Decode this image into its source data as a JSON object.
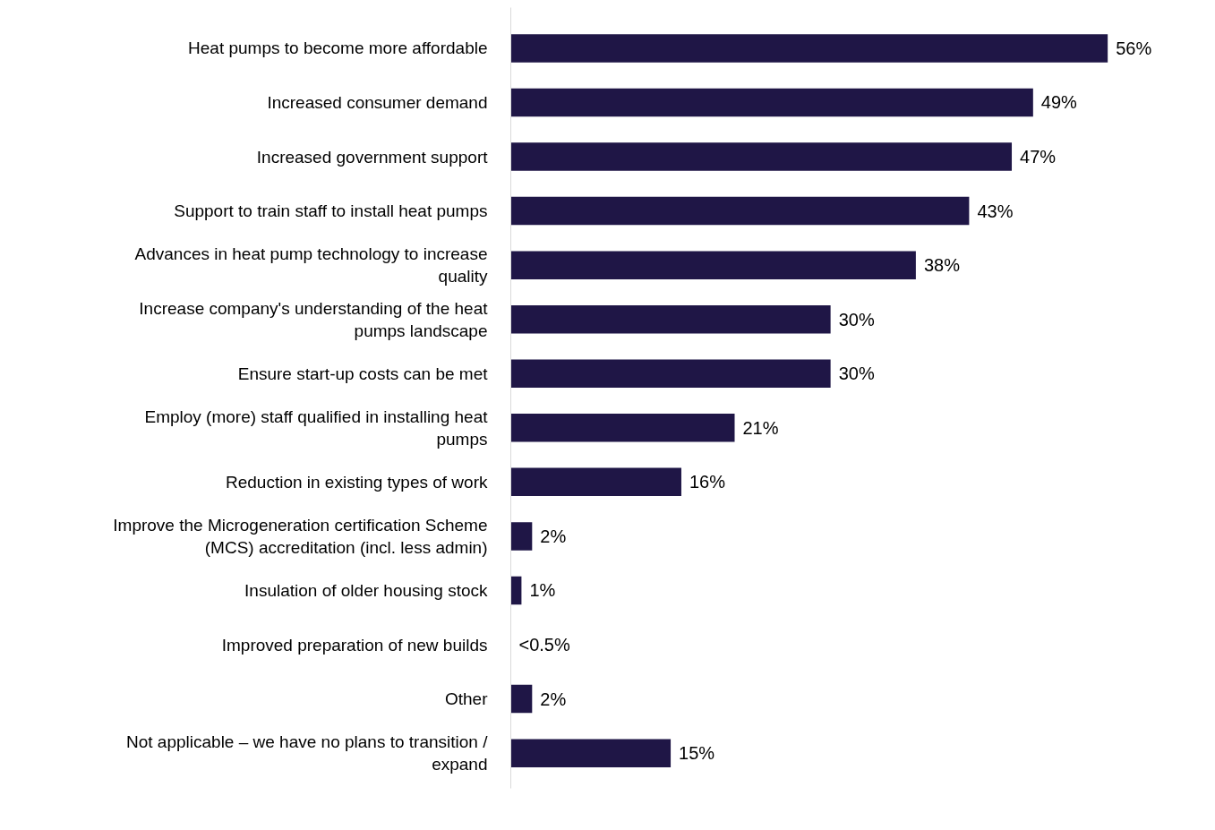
{
  "chart_data": {
    "type": "bar",
    "orientation": "horizontal",
    "categories": [
      "Heat pumps to become more affordable",
      "Increased consumer demand",
      "Increased government support",
      "Support to train staff to install heat pumps",
      "Advances in heat pump technology to increase quality",
      "Increase company's understanding of the heat pumps landscape",
      "Ensure start-up costs can be met",
      "Employ (more) staff qualified in installing heat pumps",
      "Reduction in existing types of work",
      "Improve the Microgeneration certification Scheme (MCS) accreditation (incl. less admin)",
      "Insulation of older housing stock",
      "Improved preparation of new builds",
      "Other",
      "Not applicable – we have no plans to transition / expand"
    ],
    "values": [
      56,
      49,
      47,
      43,
      38,
      30,
      30,
      21,
      16,
      2,
      1,
      0,
      2,
      15
    ],
    "value_labels": [
      "56%",
      "49%",
      "47%",
      "43%",
      "38%",
      "30%",
      "30%",
      "21%",
      "16%",
      "2%",
      "1%",
      "<0.5%",
      "2%",
      "15%"
    ],
    "color": "#1f1646",
    "grid": false,
    "tick_labels": "y"
  }
}
